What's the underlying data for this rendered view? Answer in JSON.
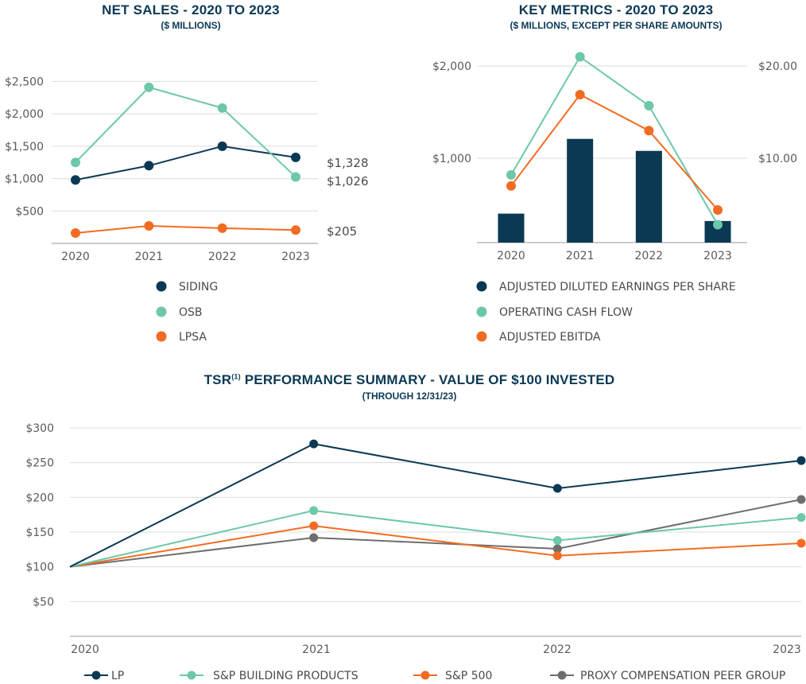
{
  "colors": {
    "navy": "#0b3954",
    "teal": "#6dc7aa",
    "orange": "#f26b22",
    "gray": "#6e6e6e",
    "grid": "#dcdcdc",
    "axis": "#9a9a9a"
  },
  "net_sales": {
    "title": "NET SALES - 2020 TO 2023",
    "subtitle": "($ MILLIONS)"
  },
  "key_metrics": {
    "title": "KEY METRICS - 2020 TO 2023",
    "subtitle": "($ MILLIONS, EXCEPT PER SHARE AMOUNTS)"
  },
  "tsr": {
    "title_pre": "TSR",
    "title_sup": "(1)",
    "title_post": " PERFORMANCE SUMMARY - VALUE OF $100 INVESTED",
    "subtitle": "(THROUGH 12/31/23)"
  },
  "chart_data": [
    {
      "id": "net_sales",
      "type": "line",
      "title": "NET SALES - 2020 TO 2023",
      "subtitle": "($ MILLIONS)",
      "categories": [
        "2020",
        "2021",
        "2022",
        "2023"
      ],
      "ylim": [
        0,
        2800
      ],
      "yticks": [
        500,
        1000,
        1500,
        2000,
        2500
      ],
      "ytick_labels": [
        "$500",
        "$1,000",
        "$1,500",
        "$2,000",
        "$2,500"
      ],
      "series": [
        {
          "name": "SIDING",
          "color": "#0b3954",
          "values": [
            980,
            1200,
            1500,
            1328
          ],
          "end_label": "$1,328"
        },
        {
          "name": "OSB",
          "color": "#6dc7aa",
          "values": [
            1250,
            2410,
            2090,
            1026
          ],
          "end_label": "$1,026"
        },
        {
          "name": "LPSA",
          "color": "#f26b22",
          "values": [
            160,
            270,
            235,
            205
          ],
          "end_label": "$205"
        }
      ],
      "legend": [
        "SIDING",
        "OSB",
        "LPSA"
      ],
      "legend_position": "bottom"
    },
    {
      "id": "key_metrics",
      "type": "bar+line",
      "title": "KEY METRICS - 2020 TO 2023",
      "subtitle": "($ MILLIONS, EXCEPT PER SHARE AMOUNTS)",
      "categories": [
        "2020",
        "2021",
        "2022",
        "2023"
      ],
      "left_axis": {
        "ylim": [
          0,
          2200
        ],
        "ticks": [
          1000,
          2000
        ],
        "labels": [
          "$1,000",
          "$2,000"
        ]
      },
      "right_axis": {
        "ylim": [
          0,
          22
        ],
        "ticks": [
          10,
          20
        ],
        "labels": [
          "$10.00",
          "$20.00"
        ]
      },
      "bars": {
        "name": "ADJUSTED DILUTED EARNINGS PER SHARE",
        "color": "#0b3954",
        "axis": "right",
        "values": [
          4.0,
          12.1,
          10.8,
          3.2
        ]
      },
      "series": [
        {
          "name": "OPERATING CASH FLOW",
          "color": "#6dc7aa",
          "axis": "left",
          "values": [
            820,
            2100,
            1570,
            280
          ]
        },
        {
          "name": "ADJUSTED EBITDA",
          "color": "#f26b22",
          "axis": "left",
          "values": [
            700,
            1690,
            1300,
            440
          ]
        }
      ],
      "legend": [
        "ADJUSTED DILUTED EARNINGS PER SHARE",
        "OPERATING CASH FLOW",
        "ADJUSTED EBITDA"
      ],
      "legend_position": "bottom"
    },
    {
      "id": "tsr",
      "type": "line",
      "title": "TSR(1) PERFORMANCE SUMMARY - VALUE OF $100 INVESTED",
      "subtitle": "(THROUGH 12/31/23)",
      "categories": [
        "2020",
        "2021",
        "2022",
        "2023"
      ],
      "ylim": [
        0,
        300
      ],
      "yticks": [
        50,
        100,
        150,
        200,
        250,
        300
      ],
      "ytick_labels": [
        "$50",
        "$100",
        "$150",
        "$200",
        "$250",
        "$300"
      ],
      "series": [
        {
          "name": "LP",
          "color": "#0b3954",
          "values": [
            100,
            277,
            213,
            253
          ]
        },
        {
          "name": "S&P BUILDING PRODUCTS",
          "color": "#6dc7aa",
          "values": [
            100,
            181,
            138,
            171
          ]
        },
        {
          "name": "S&P 500",
          "color": "#f26b22",
          "values": [
            100,
            159,
            116,
            134
          ]
        },
        {
          "name": "PROXY COMPENSATION PEER GROUP",
          "color": "#6e6e6e",
          "values": [
            100,
            142,
            126,
            197
          ]
        }
      ],
      "legend": [
        "LP",
        "S&P BUILDING PRODUCTS",
        "S&P 500",
        "PROXY COMPENSATION PEER GROUP"
      ],
      "legend_position": "bottom"
    }
  ]
}
